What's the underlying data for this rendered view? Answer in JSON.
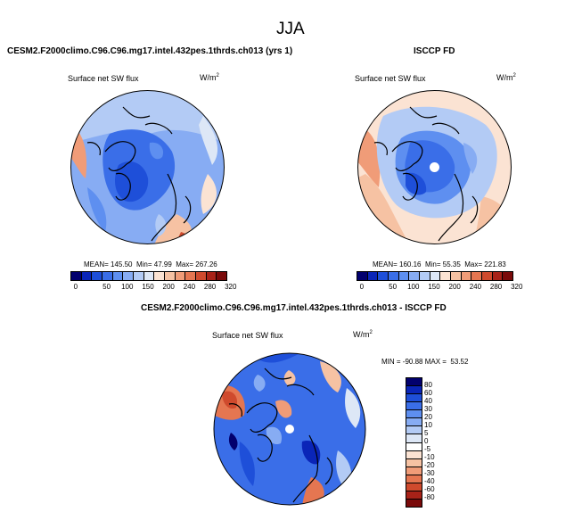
{
  "page": {
    "title": "JJA"
  },
  "colors": {
    "sw": [
      "#02006e",
      "#0a25b8",
      "#1e4fd9",
      "#3a6ee8",
      "#5e8ff0",
      "#87acf3",
      "#b3cbf5",
      "#dde7f6",
      "#fbe3d3",
      "#f6c2a3",
      "#f09c78",
      "#e57651",
      "#cf4a2d",
      "#a82218",
      "#7a0a0a"
    ],
    "diff": [
      "#02006e",
      "#0a25b8",
      "#1e4fd9",
      "#3a6ee8",
      "#5e8ff0",
      "#87acf3",
      "#b3cbf5",
      "#dde7f6",
      "#ffffff",
      "#fbe3d3",
      "#f6c2a3",
      "#f09c78",
      "#e57651",
      "#cf4a2d",
      "#a82218",
      "#7a0a0a"
    ]
  },
  "chart_data": [
    {
      "type": "heatmap",
      "panel": "model",
      "case_title": "CESM2.F2000climo.C96.C96.mg17.intel.432pes.1thrds.ch013 (yrs 1)",
      "variable": "Surface net SW flux",
      "units_base": "W/m",
      "units_exp": "2",
      "stats": {
        "mean_label": "MEAN=",
        "mean": "145.50",
        "min_label": "Min=",
        "min": "47.99",
        "max_label": "Max=",
        "max": "267.26"
      },
      "colorbar_ticks": [
        "0",
        "50",
        "100",
        "150",
        "200",
        "240",
        "280",
        "320"
      ]
    },
    {
      "type": "heatmap",
      "panel": "observations",
      "case_title": "ISCCP FD",
      "variable": "Surface net SW flux",
      "units_base": "W/m",
      "units_exp": "2",
      "stats": {
        "mean_label": "MEAN=",
        "mean": "160.16",
        "min_label": "Min=",
        "min": "55.35",
        "max_label": "Max=",
        "max": "221.83"
      },
      "colorbar_ticks": [
        "0",
        "50",
        "100",
        "150",
        "200",
        "240",
        "280",
        "320"
      ]
    },
    {
      "type": "heatmap",
      "panel": "difference",
      "case_title": "CESM2.F2000climo.C96.C96.mg17.intel.432pes.1thrds.ch013 - ISCCP FD",
      "variable": "Surface net SW flux",
      "units_base": "W/m",
      "units_exp": "2",
      "stats": {
        "min_label": "MIN =",
        "min": "-90.88",
        "max_label": "MAX =",
        "max": "53.52"
      },
      "colorbar_ticks": [
        "80",
        "60",
        "40",
        "30",
        "20",
        "10",
        "5",
        "0",
        "-5",
        "-10",
        "-20",
        "-30",
        "-40",
        "-60",
        "-80"
      ]
    }
  ]
}
